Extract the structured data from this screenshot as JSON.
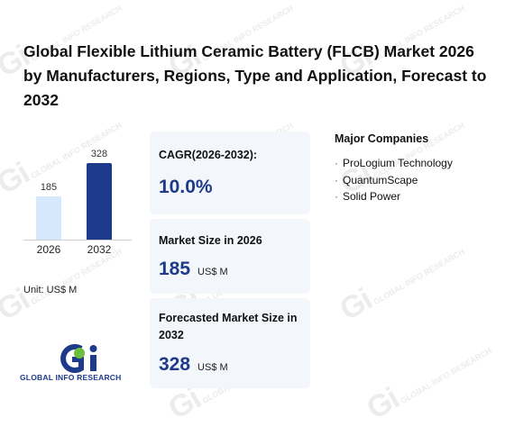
{
  "report": {
    "title": "Global Flexible Lithium Ceramic Battery (FLCB) Market 2026 by Manufacturers, Regions, Type and Application, Forecast to 2032"
  },
  "chart_data": {
    "type": "bar",
    "categories": [
      "2026",
      "2032"
    ],
    "values": [
      185,
      328
    ],
    "bar_colors": [
      "#d6e8fb",
      "#1e3a8a"
    ],
    "unit_label": "Unit: US$ M"
  },
  "stats": {
    "cagr": {
      "label": "CAGR(2026-2032):",
      "value": "10.0%"
    },
    "market_size": {
      "label": "Market Size in 2026",
      "value": "185",
      "unit": "US$ M"
    },
    "forecast": {
      "label": "Forecasted Market Size in 2032",
      "value": "328",
      "unit": "US$ M"
    }
  },
  "companies": {
    "title": "Major Companies",
    "items": [
      "ProLogium Technology",
      "QuantumScape",
      "Solid Power"
    ]
  },
  "logo": {
    "text": "GLOBAL INFO RESEARCH"
  },
  "watermark": {
    "mark": "Gi",
    "text": "GLOBAL INFO RESEARCH"
  },
  "colors": {
    "accent": "#1e3a8a",
    "light_bar": "#d6e8fb",
    "card_bg": "#f3f6fb",
    "logo_green": "#6cbf3c"
  }
}
